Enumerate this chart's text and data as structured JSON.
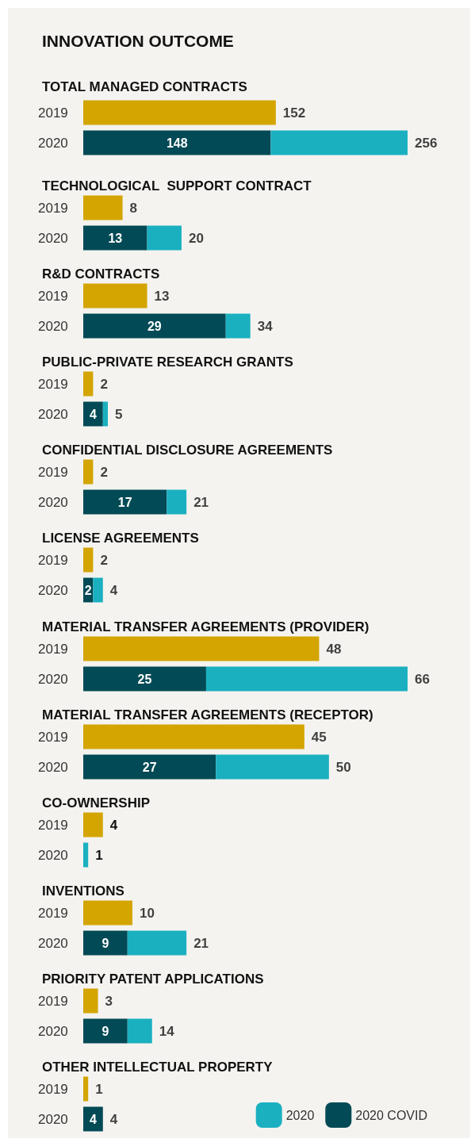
{
  "chart_data": [
    {
      "type": "bar",
      "title": "INNOVATION OUTCOME",
      "subtitle": "TOTAL MANAGED CONTRACTS",
      "orientation": "horizontal",
      "stacked": true,
      "tick_labels": "y",
      "categories": [
        "2019",
        "2020"
      ],
      "totals": [
        "152",
        "256"
      ],
      "series": [
        {
          "color": "#d4a500",
          "values": [
            152,
            null
          ]
        },
        {
          "color": "#024a55",
          "values": [
            null,
            148
          ],
          "value_labels": [
            null,
            "148"
          ]
        },
        {
          "color": "#1ab0c0",
          "values": [
            null,
            108
          ]
        }
      ]
    },
    {
      "type": "bar",
      "title": "TECHNOLOGICAL  SUPPORT CONTRACT",
      "orientation": "horizontal",
      "stacked": true,
      "tick_labels": "y",
      "categories": [
        "2019",
        "2020"
      ],
      "totals": [
        "8",
        "20"
      ],
      "series": [
        {
          "color": "#d4a500",
          "values": [
            8,
            null
          ]
        },
        {
          "color": "#024a55",
          "values": [
            null,
            13
          ],
          "value_labels": [
            null,
            "13"
          ]
        },
        {
          "color": "#1ab0c0",
          "values": [
            null,
            7
          ]
        }
      ]
    },
    {
      "type": "bar",
      "title": "R&D CONTRACTS",
      "orientation": "horizontal",
      "stacked": true,
      "tick_labels": "y",
      "categories": [
        "2019",
        "2020"
      ],
      "totals": [
        "13",
        "34"
      ],
      "series": [
        {
          "color": "#d4a500",
          "values": [
            13,
            null
          ]
        },
        {
          "color": "#024a55",
          "values": [
            null,
            29
          ],
          "value_labels": [
            null,
            "29"
          ]
        },
        {
          "color": "#1ab0c0",
          "values": [
            null,
            5
          ]
        }
      ]
    },
    {
      "type": "bar",
      "title": "PUBLIC-PRIVATE RESEARCH GRANTS",
      "orientation": "horizontal",
      "stacked": true,
      "tick_labels": "y",
      "categories": [
        "2019",
        "2020"
      ],
      "totals": [
        "2",
        "5"
      ],
      "series": [
        {
          "color": "#d4a500",
          "values": [
            2,
            null
          ]
        },
        {
          "color": "#024a55",
          "values": [
            null,
            4
          ],
          "value_labels": [
            null,
            "4"
          ]
        },
        {
          "color": "#1ab0c0",
          "values": [
            null,
            1
          ]
        }
      ]
    },
    {
      "type": "bar",
      "title": "CONFIDENTIAL DISCLOSURE AGREEMENTS",
      "orientation": "horizontal",
      "stacked": true,
      "tick_labels": "y",
      "categories": [
        "2019",
        "2020"
      ],
      "totals": [
        "2",
        "21"
      ],
      "series": [
        {
          "color": "#d4a500",
          "values": [
            2,
            null
          ]
        },
        {
          "color": "#024a55",
          "values": [
            null,
            17
          ],
          "value_labels": [
            null,
            "17"
          ]
        },
        {
          "color": "#1ab0c0",
          "values": [
            null,
            4
          ]
        }
      ]
    },
    {
      "type": "bar",
      "title": "LICENSE AGREEMENTS",
      "orientation": "horizontal",
      "stacked": true,
      "tick_labels": "y",
      "categories": [
        "2019",
        "2020"
      ],
      "totals": [
        "2",
        "4"
      ],
      "series": [
        {
          "color": "#d4a500",
          "values": [
            2,
            null
          ]
        },
        {
          "color": "#024a55",
          "values": [
            null,
            2
          ],
          "value_labels": [
            null,
            "2"
          ]
        },
        {
          "color": "#1ab0c0",
          "values": [
            null,
            2
          ]
        }
      ]
    },
    {
      "type": "bar",
      "title": "MATERIAL TRANSFER AGREEMENTS (PROVIDER)",
      "orientation": "horizontal",
      "stacked": true,
      "tick_labels": "y",
      "categories": [
        "2019",
        "2020"
      ],
      "totals": [
        "48",
        "66"
      ],
      "series": [
        {
          "color": "#d4a500",
          "values": [
            48,
            null
          ]
        },
        {
          "color": "#024a55",
          "values": [
            null,
            25
          ],
          "value_labels": [
            null,
            "25"
          ]
        },
        {
          "color": "#1ab0c0",
          "values": [
            null,
            41
          ]
        }
      ]
    },
    {
      "type": "bar",
      "title": "MATERIAL TRANSFER AGREEMENTS (RECEPTOR)",
      "orientation": "horizontal",
      "stacked": true,
      "tick_labels": "y",
      "categories": [
        "2019",
        "2020"
      ],
      "totals": [
        "45",
        "50"
      ],
      "series": [
        {
          "color": "#d4a500",
          "values": [
            45,
            null
          ]
        },
        {
          "color": "#024a55",
          "values": [
            null,
            27
          ],
          "value_labels": [
            null,
            "27"
          ]
        },
        {
          "color": "#1ab0c0",
          "values": [
            null,
            23
          ]
        }
      ]
    },
    {
      "type": "bar",
      "title": "CO-OWNERSHIP",
      "orientation": "horizontal",
      "stacked": true,
      "tick_labels": "y",
      "categories": [
        "2019",
        "2020"
      ],
      "series": [
        {
          "color": "#d4a500",
          "values": [
            4,
            null
          ],
          "value_labels": [
            "4",
            null
          ]
        },
        {
          "color": "#1ab0c0",
          "values": [
            null,
            1
          ],
          "value_labels": [
            null,
            "1"
          ]
        }
      ]
    },
    {
      "type": "bar",
      "title": "INVENTIONS",
      "orientation": "horizontal",
      "stacked": true,
      "tick_labels": "y",
      "categories": [
        "2019",
        "2020"
      ],
      "totals": [
        "10",
        "21"
      ],
      "series": [
        {
          "color": "#d4a500",
          "values": [
            10,
            null
          ]
        },
        {
          "color": "#024a55",
          "values": [
            null,
            9
          ],
          "value_labels": [
            null,
            "9"
          ]
        },
        {
          "color": "#1ab0c0",
          "values": [
            null,
            12
          ]
        }
      ]
    },
    {
      "type": "bar",
      "title": "PRIORITY PATENT APPLICATIONS",
      "orientation": "horizontal",
      "stacked": true,
      "tick_labels": "y",
      "categories": [
        "2019",
        "2020"
      ],
      "totals": [
        "3",
        "14"
      ],
      "series": [
        {
          "color": "#d4a500",
          "values": [
            3,
            null
          ]
        },
        {
          "color": "#024a55",
          "values": [
            null,
            9
          ],
          "value_labels": [
            null,
            "9"
          ]
        },
        {
          "color": "#1ab0c0",
          "values": [
            null,
            5
          ]
        }
      ]
    },
    {
      "type": "bar",
      "title": "OTHER INTELLECTUAL PROPERTY",
      "orientation": "horizontal",
      "stacked": true,
      "tick_labels": "y",
      "legend": "bottom right",
      "categories": [
        "2019",
        "2020"
      ],
      "totals": [
        "1",
        "4"
      ],
      "series": [
        {
          "color": "#d4a500",
          "values": [
            1,
            null
          ]
        },
        {
          "name": "2020 COVID",
          "color": "#024a55",
          "values": [
            null,
            4
          ],
          "value_labels": [
            null,
            "4"
          ]
        },
        {
          "name": "2020",
          "color": "#1ab0c0",
          "values": [
            null,
            null
          ]
        }
      ]
    }
  ]
}
